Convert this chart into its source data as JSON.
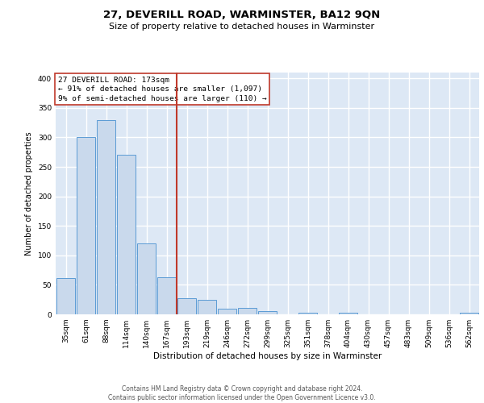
{
  "title": "27, DEVERILL ROAD, WARMINSTER, BA12 9QN",
  "subtitle": "Size of property relative to detached houses in Warminster",
  "xlabel": "Distribution of detached houses by size in Warminster",
  "ylabel": "Number of detached properties",
  "bin_labels": [
    "35sqm",
    "61sqm",
    "88sqm",
    "114sqm",
    "140sqm",
    "167sqm",
    "193sqm",
    "219sqm",
    "246sqm",
    "272sqm",
    "299sqm",
    "325sqm",
    "351sqm",
    "378sqm",
    "404sqm",
    "430sqm",
    "457sqm",
    "483sqm",
    "509sqm",
    "536sqm",
    "562sqm"
  ],
  "bar_values": [
    62,
    300,
    330,
    270,
    120,
    63,
    28,
    25,
    9,
    11,
    5,
    0,
    3,
    0,
    3,
    0,
    0,
    0,
    0,
    0,
    3
  ],
  "bar_color": "#c9d9ec",
  "bar_edge_color": "#5b9bd5",
  "vline_x_index": 6,
  "vline_color": "#c0392b",
  "annotation_line1": "27 DEVERILL ROAD: 173sqm",
  "annotation_line2": "← 91% of detached houses are smaller (1,097)",
  "annotation_line3": "9% of semi-detached houses are larger (110) →",
  "annotation_box_color": "#c0392b",
  "ylim": [
    0,
    410
  ],
  "yticks": [
    0,
    50,
    100,
    150,
    200,
    250,
    300,
    350,
    400
  ],
  "background_color": "#dde8f5",
  "grid_color": "#ffffff",
  "footer_text": "Contains HM Land Registry data © Crown copyright and database right 2024.\nContains public sector information licensed under the Open Government Licence v3.0.",
  "title_fontsize": 9.5,
  "subtitle_fontsize": 8.0,
  "xlabel_fontsize": 7.5,
  "ylabel_fontsize": 7.0,
  "tick_fontsize": 6.5,
  "annotation_fontsize": 6.8,
  "footer_fontsize": 5.5
}
